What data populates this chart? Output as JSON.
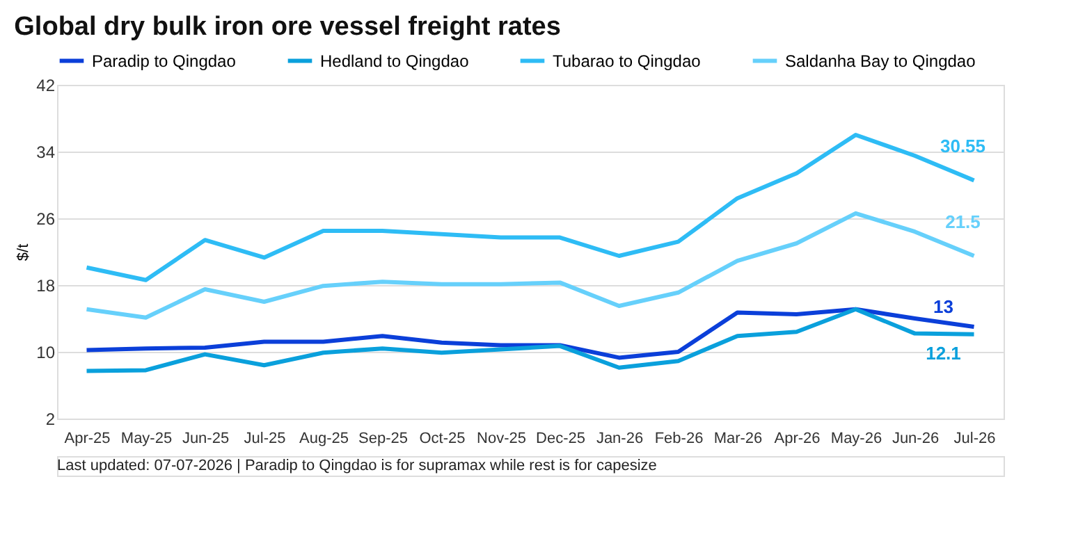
{
  "chart_data": {
    "type": "line",
    "title": "Global dry bulk iron ore vessel freight rates",
    "ylabel": "$/t",
    "categories": [
      "Apr-25",
      "May-25",
      "Jun-25",
      "Jul-25",
      "Aug-25",
      "Sep-25",
      "Oct-25",
      "Nov-25",
      "Dec-25",
      "Jan-26",
      "Feb-26",
      "Mar-26",
      "Apr-26",
      "May-26",
      "Jun-26",
      "Jul-26"
    ],
    "series": [
      {
        "name": "Paradip to Qingdao",
        "color": "#0b3fd9",
        "values": [
          10.2,
          10.4,
          10.5,
          11.2,
          11.2,
          11.9,
          11.1,
          10.8,
          10.8,
          9.3,
          10.0,
          14.7,
          14.5,
          15.1,
          14.0,
          13
        ],
        "value_labels": [
          null,
          null,
          null,
          null,
          null,
          null,
          null,
          null,
          null,
          null,
          null,
          null,
          null,
          null,
          null,
          "13"
        ]
      },
      {
        "name": "Hedland to Qingdao",
        "color": "#0aa0dc",
        "values": [
          7.7,
          7.8,
          9.7,
          8.4,
          9.9,
          10.4,
          9.9,
          10.3,
          10.7,
          8.1,
          8.9,
          11.9,
          12.4,
          15.1,
          12.2,
          12.1
        ],
        "value_labels": [
          null,
          null,
          null,
          null,
          null,
          null,
          null,
          null,
          null,
          null,
          null,
          null,
          null,
          null,
          null,
          "12.1"
        ]
      },
      {
        "name": "Tubarao to Qingdao",
        "color": "#2ebcf5",
        "values": [
          20.1,
          18.6,
          23.4,
          21.3,
          24.5,
          24.5,
          24.1,
          23.7,
          23.7,
          21.5,
          23.2,
          28.4,
          31.4,
          36.0,
          33.5,
          30.55
        ],
        "value_labels": [
          null,
          null,
          null,
          null,
          null,
          null,
          null,
          null,
          null,
          null,
          null,
          null,
          null,
          null,
          null,
          "30.55"
        ]
      },
      {
        "name": "Saldanha Bay to Qingdao",
        "color": "#66d0fb",
        "values": [
          15.1,
          14.1,
          17.5,
          16.0,
          17.9,
          18.4,
          18.1,
          18.1,
          18.3,
          15.5,
          17.1,
          20.9,
          23.0,
          26.6,
          24.4,
          21.5
        ],
        "value_labels": [
          null,
          null,
          null,
          null,
          null,
          null,
          null,
          null,
          null,
          null,
          null,
          null,
          null,
          null,
          null,
          "21.5"
        ]
      }
    ],
    "ylim": [
      2,
      42
    ],
    "yticks": [
      2,
      10,
      18,
      26,
      34,
      42
    ],
    "grid": "y",
    "legend": "top",
    "marker": "none",
    "line_style": "solid",
    "annotations": [
      "Last updated: 07-07-2026 | Paradip to Qingdao is for supramax while rest is for capesize"
    ]
  }
}
